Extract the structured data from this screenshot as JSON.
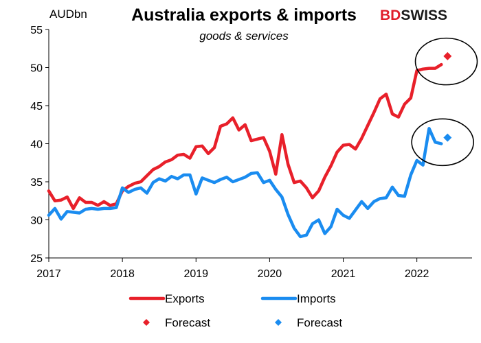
{
  "chart_data": {
    "type": "line",
    "title": "Australia exports & imports",
    "subtitle": "goods & services",
    "unit_label": "AUDbn",
    "brand": {
      "part1": "BD",
      "part2": "SWISS",
      "color1": "#e01e2b",
      "color2": "#1a1a1a"
    },
    "x_ticks": [
      "2017",
      "2018",
      "2019",
      "2020",
      "2021",
      "2022"
    ],
    "y_ticks": [
      25,
      30,
      35,
      40,
      45,
      50,
      55
    ],
    "xlim": [
      2017.0,
      2022.75
    ],
    "ylim": [
      25,
      55
    ],
    "grid": false,
    "legend_position": "bottom",
    "series": [
      {
        "name": "Exports",
        "color": "#e8202a",
        "style": "line",
        "x": [
          2017.0,
          2017.083,
          2017.167,
          2017.25,
          2017.333,
          2017.417,
          2017.5,
          2017.583,
          2017.667,
          2017.75,
          2017.833,
          2017.917,
          2018.0,
          2018.083,
          2018.167,
          2018.25,
          2018.333,
          2018.417,
          2018.5,
          2018.583,
          2018.667,
          2018.75,
          2018.833,
          2018.917,
          2019.0,
          2019.083,
          2019.167,
          2019.25,
          2019.333,
          2019.417,
          2019.5,
          2019.583,
          2019.667,
          2019.75,
          2019.833,
          2019.917,
          2020.0,
          2020.083,
          2020.167,
          2020.25,
          2020.333,
          2020.417,
          2020.5,
          2020.583,
          2020.667,
          2020.75,
          2020.833,
          2020.917,
          2021.0,
          2021.083,
          2021.167,
          2021.25,
          2021.333,
          2021.417,
          2021.5,
          2021.583,
          2021.667,
          2021.75,
          2021.833,
          2021.917,
          2022.0,
          2022.083,
          2022.167,
          2022.25,
          2022.333
        ],
        "y": [
          33.8,
          32.5,
          32.6,
          33.0,
          31.5,
          32.9,
          32.3,
          32.3,
          31.9,
          32.4,
          31.9,
          32.1,
          33.8,
          34.4,
          34.8,
          35.0,
          35.8,
          36.6,
          37.0,
          37.6,
          37.9,
          38.5,
          38.6,
          38.1,
          39.6,
          39.7,
          38.7,
          39.5,
          42.3,
          42.6,
          43.4,
          41.8,
          42.5,
          40.4,
          40.6,
          40.8,
          39.0,
          36.0,
          41.2,
          37.3,
          34.9,
          35.1,
          34.2,
          32.9,
          33.8,
          35.6,
          37.1,
          38.9,
          39.8,
          39.9,
          39.3,
          40.7,
          42.4,
          44.1,
          45.9,
          46.5,
          43.9,
          43.5,
          45.2,
          46.0,
          49.6,
          49.8,
          49.9,
          49.9,
          50.4
        ]
      },
      {
        "name": "Imports",
        "color": "#1a8cf0",
        "style": "line",
        "x": [
          2017.0,
          2017.083,
          2017.167,
          2017.25,
          2017.333,
          2017.417,
          2017.5,
          2017.583,
          2017.667,
          2017.75,
          2017.833,
          2017.917,
          2018.0,
          2018.083,
          2018.167,
          2018.25,
          2018.333,
          2018.417,
          2018.5,
          2018.583,
          2018.667,
          2018.75,
          2018.833,
          2018.917,
          2019.0,
          2019.083,
          2019.167,
          2019.25,
          2019.333,
          2019.417,
          2019.5,
          2019.583,
          2019.667,
          2019.75,
          2019.833,
          2019.917,
          2020.0,
          2020.083,
          2020.167,
          2020.25,
          2020.333,
          2020.417,
          2020.5,
          2020.583,
          2020.667,
          2020.75,
          2020.833,
          2020.917,
          2021.0,
          2021.083,
          2021.167,
          2021.25,
          2021.333,
          2021.417,
          2021.5,
          2021.583,
          2021.667,
          2021.75,
          2021.833,
          2021.917,
          2022.0,
          2022.083,
          2022.167,
          2022.25,
          2022.333
        ],
        "y": [
          30.6,
          31.5,
          30.1,
          31.1,
          31.0,
          30.9,
          31.4,
          31.5,
          31.4,
          31.5,
          31.5,
          31.6,
          34.2,
          33.6,
          34.0,
          34.2,
          33.5,
          34.9,
          35.4,
          35.1,
          35.7,
          35.4,
          35.9,
          35.9,
          33.4,
          35.5,
          35.2,
          34.9,
          35.3,
          35.6,
          35.0,
          35.3,
          35.6,
          36.1,
          36.2,
          34.9,
          35.2,
          34.0,
          33.0,
          30.7,
          28.9,
          27.8,
          28.0,
          29.5,
          30.0,
          28.2,
          29.1,
          31.4,
          30.6,
          30.2,
          31.3,
          32.4,
          31.5,
          32.4,
          32.8,
          32.9,
          34.3,
          33.2,
          33.1,
          35.9,
          37.8,
          37.2,
          42.0,
          40.2,
          40.0
        ]
      },
      {
        "name": "Forecast",
        "color": "#e8202a",
        "style": "marker",
        "x": [
          2022.417
        ],
        "y": [
          51.5
        ]
      },
      {
        "name": "Forecast",
        "color": "#1a8cf0",
        "style": "marker",
        "x": [
          2022.417
        ],
        "y": [
          40.8
        ]
      }
    ],
    "annotations": [
      {
        "shape": "ellipse",
        "cx": 2022.4,
        "cy": 50.8
      },
      {
        "shape": "ellipse",
        "cx": 2022.35,
        "cy": 40.2
      }
    ]
  }
}
